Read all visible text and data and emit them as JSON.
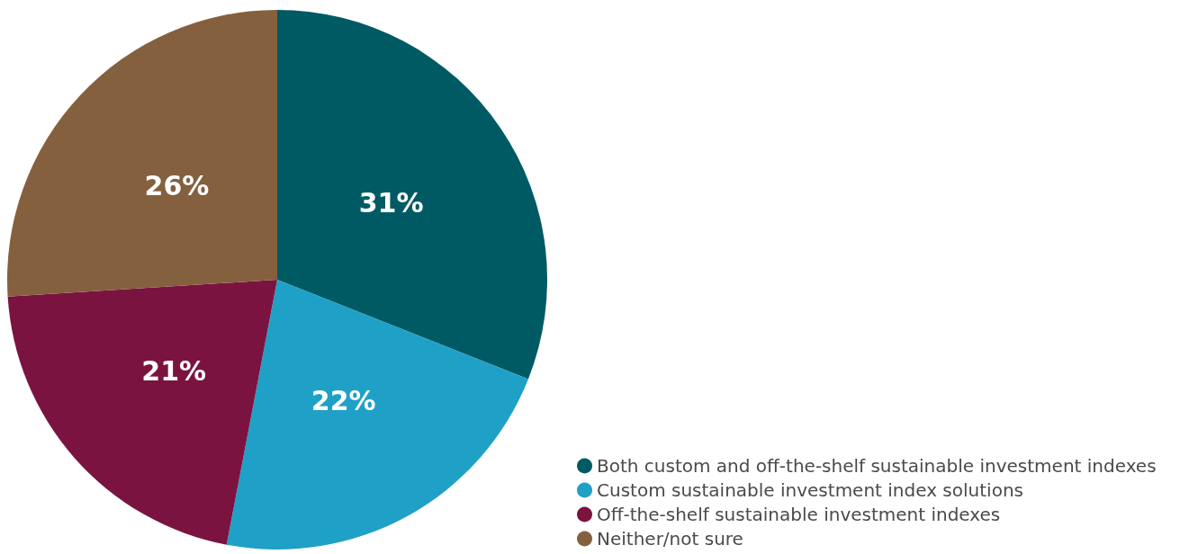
{
  "chart_data": {
    "type": "pie",
    "categories": [
      "Both custom and off-the-shelf sustainable investment indexes",
      "Custom sustainable investment index solutions",
      "Off-the-shelf sustainable investment indexes",
      "Neither/not sure"
    ],
    "values": [
      31,
      22,
      21,
      26
    ],
    "colors": [
      "#005a64",
      "#1fa0c6",
      "#7b1340",
      "#84603f"
    ],
    "value_labels": [
      "31%",
      "22%",
      "21%",
      "26%"
    ],
    "legend": "bottom right"
  }
}
